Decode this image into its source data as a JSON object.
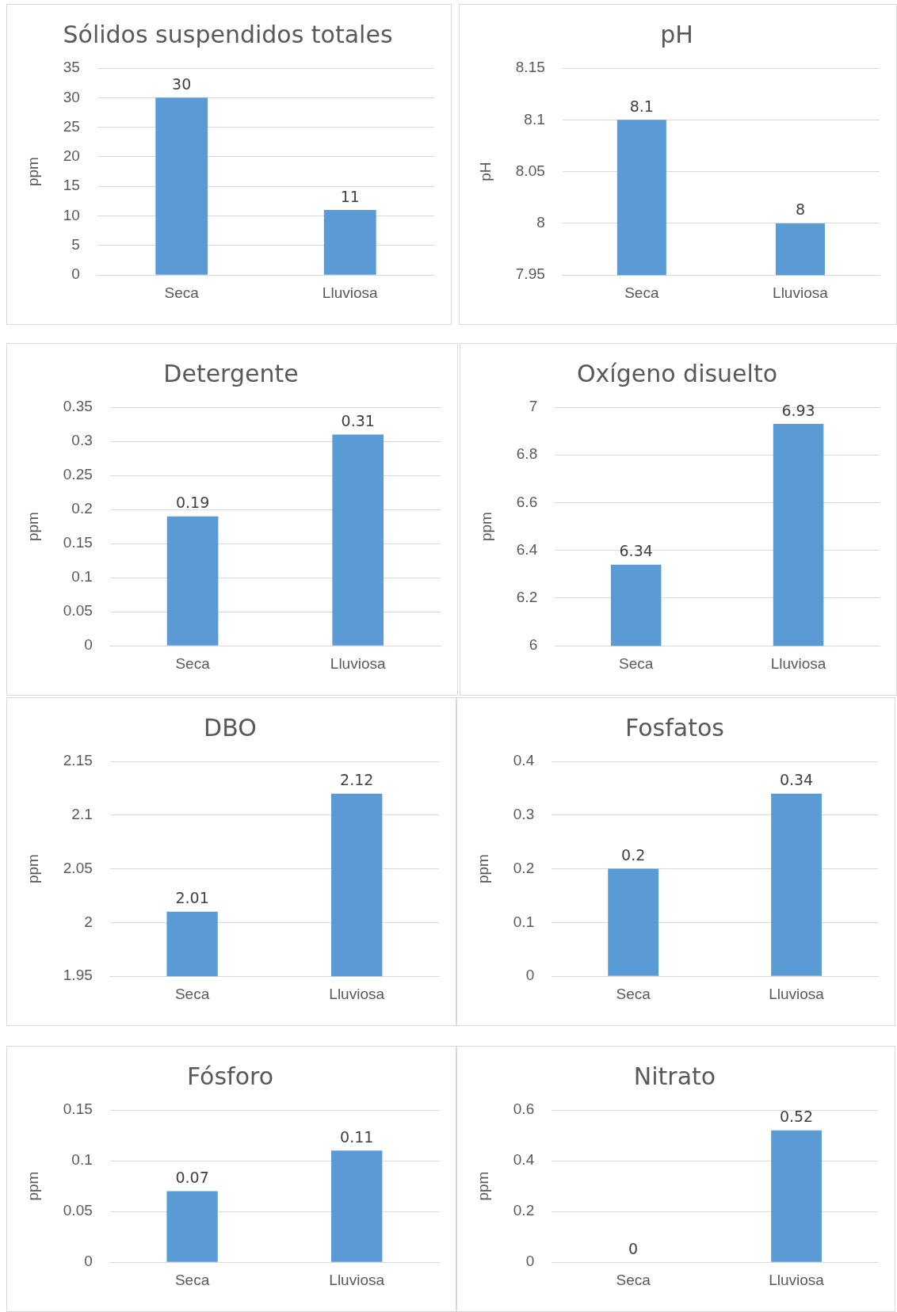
{
  "chart_data": [
    {
      "type": "bar",
      "title": "Sólidos suspendidos totales",
      "ylabel": "ppm",
      "categories": [
        "Seca",
        "Lluviosa"
      ],
      "values": [
        30,
        11
      ],
      "color": "#5b9bd5",
      "ylim": [
        0,
        35
      ],
      "yticks": [
        0,
        5,
        10,
        15,
        20,
        25,
        30,
        35
      ],
      "grid": "y",
      "data_labels": true
    },
    {
      "type": "bar",
      "title": "pH",
      "ylabel": "pH",
      "categories": [
        "Seca",
        "Lluviosa"
      ],
      "values": [
        8.1,
        8
      ],
      "color": "#5b9bd5",
      "ylim": [
        7.95,
        8.15
      ],
      "yticks": [
        7.95,
        8,
        8.05,
        8.1,
        8.15
      ],
      "grid": "y",
      "data_labels": true
    },
    {
      "type": "bar",
      "title": "Detergente",
      "ylabel": "ppm",
      "categories": [
        "Seca",
        "Lluviosa"
      ],
      "values": [
        0.19,
        0.31
      ],
      "color": "#5b9bd5",
      "ylim": [
        0,
        0.35
      ],
      "yticks": [
        0,
        0.05,
        0.1,
        0.15,
        0.2,
        0.25,
        0.3,
        0.35
      ],
      "grid": "y",
      "data_labels": true
    },
    {
      "type": "bar",
      "title": "Oxígeno disuelto",
      "ylabel": "ppm",
      "categories": [
        "Seca",
        "Lluviosa"
      ],
      "values": [
        6.34,
        6.93
      ],
      "color": "#5b9bd5",
      "ylim": [
        6,
        7
      ],
      "yticks": [
        6,
        6.2,
        6.4,
        6.6,
        6.8,
        7
      ],
      "grid": "y",
      "data_labels": true
    },
    {
      "type": "bar",
      "title": "DBO",
      "ylabel": "ppm",
      "categories": [
        "Seca",
        "Lluviosa"
      ],
      "values": [
        2.01,
        2.12
      ],
      "color": "#5b9bd5",
      "ylim": [
        1.95,
        2.15
      ],
      "yticks": [
        1.95,
        2,
        2.05,
        2.1,
        2.15
      ],
      "grid": "y",
      "data_labels": true
    },
    {
      "type": "bar",
      "title": "Fosfatos",
      "ylabel": "ppm",
      "categories": [
        "Seca",
        "Lluviosa"
      ],
      "values": [
        0.2,
        0.34
      ],
      "color": "#5b9bd5",
      "ylim": [
        0,
        0.4
      ],
      "yticks": [
        0,
        0.1,
        0.2,
        0.3,
        0.4
      ],
      "grid": "y",
      "data_labels": true
    },
    {
      "type": "bar",
      "title": "Fósforo",
      "ylabel": "ppm",
      "categories": [
        "Seca",
        "Lluviosa"
      ],
      "values": [
        0.07,
        0.11
      ],
      "color": "#5b9bd5",
      "ylim": [
        0,
        0.15
      ],
      "yticks": [
        0,
        0.05,
        0.1,
        0.15
      ],
      "grid": "y",
      "data_labels": true
    },
    {
      "type": "bar",
      "title": "Nitrato",
      "ylabel": "ppm",
      "categories": [
        "Seca",
        "Lluviosa"
      ],
      "values": [
        0,
        0.52
      ],
      "color": "#5b9bd5",
      "ylim": [
        0,
        0.6
      ],
      "yticks": [
        0,
        0.2,
        0.4,
        0.6
      ],
      "grid": "y",
      "data_labels": true
    }
  ]
}
